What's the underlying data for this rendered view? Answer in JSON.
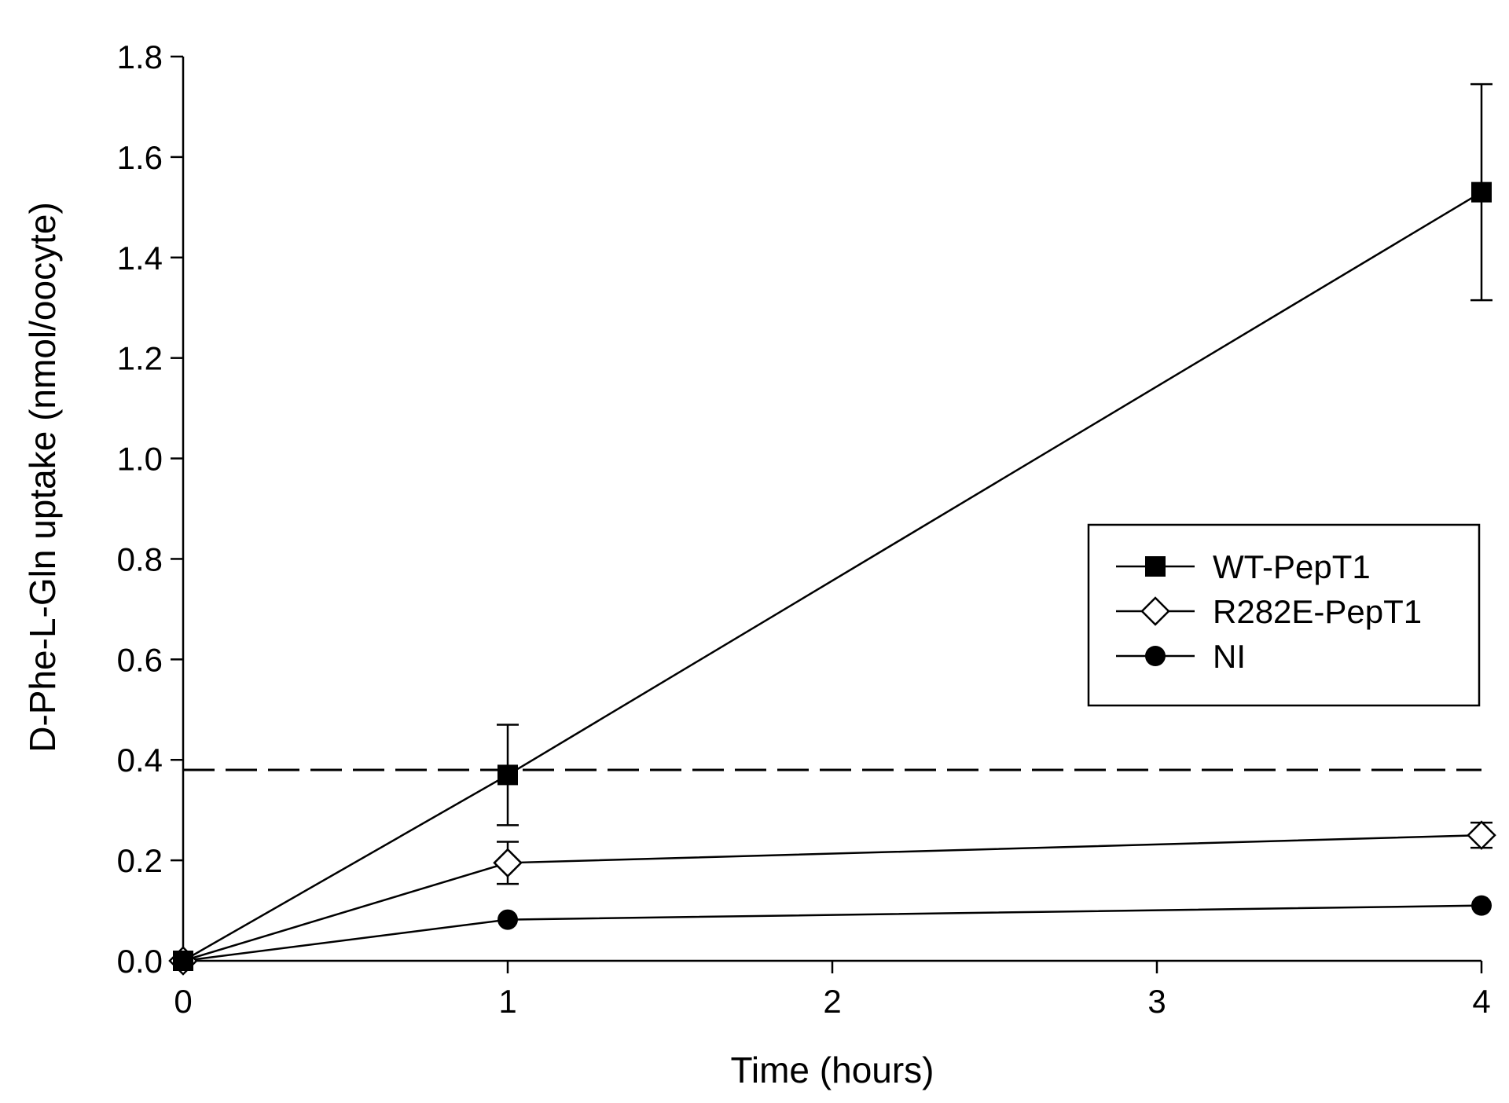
{
  "chart_data": {
    "type": "line",
    "xlabel": "Time (hours)",
    "ylabel": "D-Phe-L-Gln uptake (nmol/oocyte)",
    "xlim": [
      0,
      4
    ],
    "ylim": [
      0,
      1.8
    ],
    "xticks": [
      "0",
      "1",
      "2",
      "3",
      "4"
    ],
    "yticks": [
      "0.0",
      "0.2",
      "0.4",
      "0.6",
      "0.8",
      "1.0",
      "1.2",
      "1.4",
      "1.6",
      "1.8"
    ],
    "grid": false,
    "legend_position": "right",
    "reference_line": {
      "y": 0.38,
      "style": "dashed"
    },
    "series": [
      {
        "name": "WT-PepT1",
        "marker": "filled-square",
        "x": [
          0,
          1,
          4
        ],
        "y": [
          0.0,
          0.37,
          1.53
        ],
        "error": [
          0.0,
          0.1,
          0.215
        ]
      },
      {
        "name": "R282E-PepT1",
        "marker": "open-diamond",
        "x": [
          0,
          1,
          4
        ],
        "y": [
          0.0,
          0.195,
          0.25
        ],
        "error": [
          0.0,
          0.042,
          0.025
        ]
      },
      {
        "name": "NI",
        "marker": "filled-circle",
        "x": [
          0,
          1,
          4
        ],
        "y": [
          0.0,
          0.082,
          0.11
        ],
        "error": [
          0.0,
          0.0,
          0.0
        ]
      }
    ]
  }
}
